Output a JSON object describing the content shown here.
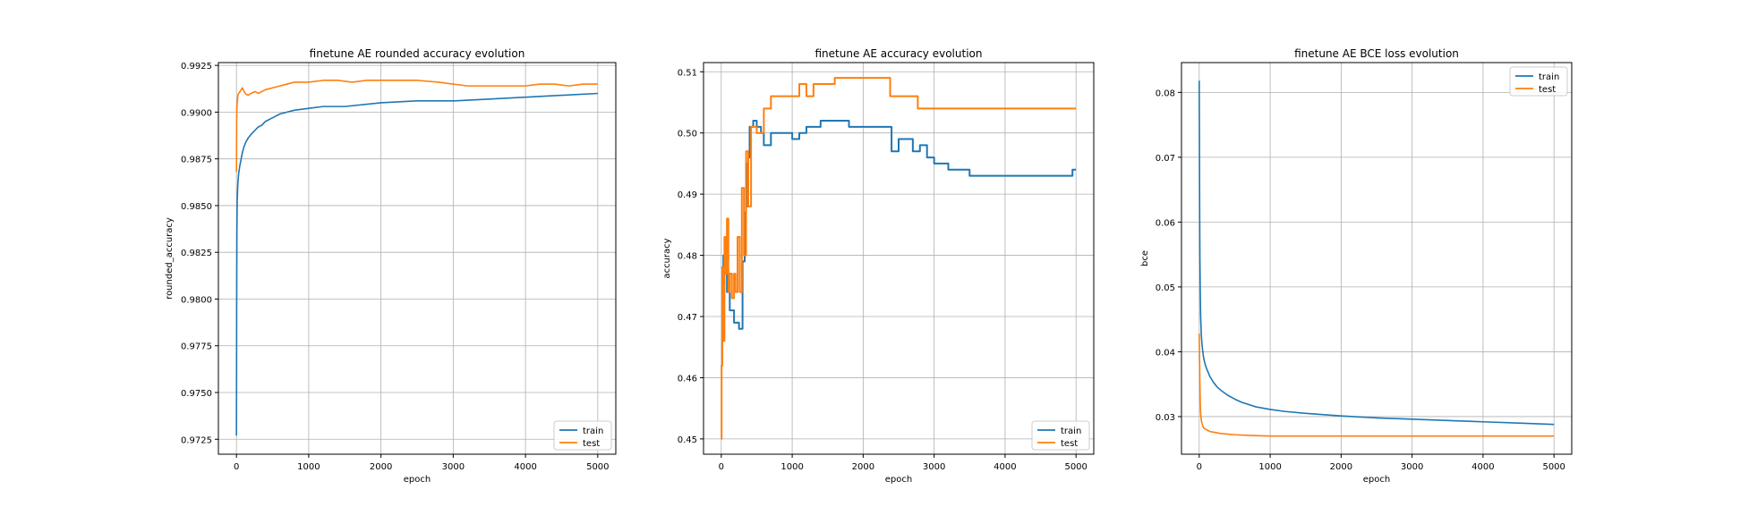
{
  "chart_data": [
    {
      "type": "line",
      "title": "finetune AE rounded accuracy evolution",
      "xlabel": "epoch",
      "ylabel": "rounded_accuracy",
      "xlim": [
        -250,
        5250
      ],
      "ylim": [
        0.9717,
        0.99265
      ],
      "xticks": [
        0,
        1000,
        2000,
        3000,
        4000,
        5000
      ],
      "xtick_labels": [
        "0",
        "1000",
        "2000",
        "3000",
        "4000",
        "5000"
      ],
      "yticks": [
        0.9725,
        0.975,
        0.9775,
        0.98,
        0.9825,
        0.985,
        0.9875,
        0.99,
        0.9925
      ],
      "ytick_labels": [
        "0.9725",
        "0.9750",
        "0.9775",
        "0.9800",
        "0.9825",
        "0.9850",
        "0.9875",
        "0.9900",
        "0.9925"
      ],
      "grid": true,
      "legend": "lower right",
      "series": [
        {
          "name": "train",
          "color": "#1f77b4",
          "step": false,
          "x": [
            0,
            3,
            6,
            10,
            15,
            20,
            30,
            45,
            60,
            80,
            100,
            130,
            160,
            200,
            250,
            300,
            350,
            400,
            500,
            600,
            700,
            800,
            1000,
            1200,
            1500,
            2000,
            2500,
            3000,
            3500,
            4000,
            4500,
            5000
          ],
          "y": [
            0.9727,
            0.9795,
            0.9835,
            0.9852,
            0.9858,
            0.9862,
            0.9867,
            0.9871,
            0.9874,
            0.9878,
            0.9881,
            0.9884,
            0.9886,
            0.9888,
            0.989,
            0.9892,
            0.9893,
            0.9895,
            0.9897,
            0.9899,
            0.99,
            0.9901,
            0.9902,
            0.9903,
            0.9903,
            0.9905,
            0.9906,
            0.9906,
            0.9907,
            0.9908,
            0.9909,
            0.991
          ]
        },
        {
          "name": "test",
          "color": "#ff7f0e",
          "step": false,
          "x": [
            0,
            3,
            6,
            10,
            15,
            20,
            30,
            50,
            80,
            120,
            160,
            200,
            260,
            300,
            350,
            400,
            500,
            600,
            700,
            800,
            1000,
            1200,
            1400,
            1600,
            1800,
            2000,
            2200,
            2500,
            2800,
            3000,
            3200,
            3500,
            4000,
            4200,
            4400,
            4600,
            4800,
            5000
          ],
          "y": [
            0.9868,
            0.9895,
            0.9902,
            0.9905,
            0.9907,
            0.9909,
            0.991,
            0.9911,
            0.9913,
            0.991,
            0.9909,
            0.991,
            0.9911,
            0.991,
            0.9911,
            0.9912,
            0.9913,
            0.9914,
            0.9915,
            0.9916,
            0.9916,
            0.9917,
            0.9917,
            0.9916,
            0.9917,
            0.9917,
            0.9917,
            0.9917,
            0.9916,
            0.9915,
            0.9914,
            0.9914,
            0.9914,
            0.9915,
            0.9915,
            0.9914,
            0.9915,
            0.9915
          ]
        }
      ]
    },
    {
      "type": "line",
      "title": "finetune AE accuracy evolution",
      "xlabel": "epoch",
      "ylabel": "accuracy",
      "xlim": [
        -250,
        5250
      ],
      "ylim": [
        0.4475,
        0.5115
      ],
      "xticks": [
        0,
        1000,
        2000,
        3000,
        4000,
        5000
      ],
      "xtick_labels": [
        "0",
        "1000",
        "2000",
        "3000",
        "4000",
        "5000"
      ],
      "yticks": [
        0.45,
        0.46,
        0.47,
        0.48,
        0.49,
        0.5,
        0.51
      ],
      "ytick_labels": [
        "0.45",
        "0.46",
        "0.47",
        "0.48",
        "0.49",
        "0.50",
        "0.51"
      ],
      "grid": true,
      "legend": "lower right",
      "series": [
        {
          "name": "train",
          "color": "#1f77b4",
          "step": true,
          "x": [
            0,
            15,
            30,
            60,
            80,
            120,
            180,
            250,
            300,
            330,
            350,
            360,
            380,
            400,
            450,
            500,
            560,
            600,
            700,
            800,
            900,
            1000,
            1100,
            1200,
            1300,
            1400,
            1500,
            1600,
            1800,
            2000,
            2300,
            2400,
            2500,
            2700,
            2800,
            2900,
            3000,
            3200,
            3500,
            3700,
            4000,
            4300,
            4500,
            4800,
            4950,
            5000
          ],
          "y": [
            0.478,
            0.476,
            0.48,
            0.478,
            0.474,
            0.471,
            0.469,
            0.468,
            0.479,
            0.487,
            0.495,
            0.488,
            0.496,
            0.501,
            0.502,
            0.501,
            0.5,
            0.498,
            0.5,
            0.5,
            0.5,
            0.499,
            0.5,
            0.501,
            0.501,
            0.502,
            0.502,
            0.502,
            0.501,
            0.501,
            0.501,
            0.497,
            0.499,
            0.497,
            0.498,
            0.496,
            0.495,
            0.494,
            0.493,
            0.493,
            0.493,
            0.493,
            0.493,
            0.493,
            0.494,
            0.494
          ]
        },
        {
          "name": "test",
          "color": "#ff7f0e",
          "step": true,
          "x": [
            0,
            5,
            15,
            30,
            45,
            60,
            80,
            100,
            120,
            150,
            180,
            200,
            230,
            260,
            290,
            320,
            350,
            380,
            420,
            500,
            600,
            700,
            800,
            1000,
            1100,
            1200,
            1300,
            1400,
            1500,
            1600,
            1800,
            2000,
            2200,
            2360,
            2380,
            2600,
            2750,
            2770,
            3000,
            4000,
            5000
          ],
          "y": [
            0.45,
            0.462,
            0.478,
            0.466,
            0.483,
            0.477,
            0.486,
            0.474,
            0.477,
            0.473,
            0.477,
            0.474,
            0.483,
            0.474,
            0.491,
            0.48,
            0.497,
            0.488,
            0.501,
            0.5,
            0.504,
            0.506,
            0.506,
            0.506,
            0.508,
            0.506,
            0.508,
            0.508,
            0.508,
            0.509,
            0.509,
            0.509,
            0.509,
            0.509,
            0.506,
            0.506,
            0.506,
            0.504,
            0.504,
            0.504,
            0.504
          ]
        }
      ]
    },
    {
      "type": "line",
      "title": "finetune AE BCE loss evolution",
      "xlabel": "epoch",
      "ylabel": "bce",
      "xlim": [
        -250,
        5250
      ],
      "ylim": [
        0.0242,
        0.0846
      ],
      "xticks": [
        0,
        1000,
        2000,
        3000,
        4000,
        5000
      ],
      "xtick_labels": [
        "0",
        "1000",
        "2000",
        "3000",
        "4000",
        "5000"
      ],
      "yticks": [
        0.03,
        0.04,
        0.05,
        0.06,
        0.07,
        0.08
      ],
      "ytick_labels": [
        "0.03",
        "0.04",
        "0.05",
        "0.06",
        "0.07",
        "0.08"
      ],
      "grid": true,
      "legend": "upper right",
      "series": [
        {
          "name": "train",
          "color": "#1f77b4",
          "step": false,
          "x": [
            0,
            3,
            6,
            10,
            15,
            20,
            30,
            40,
            60,
            80,
            100,
            150,
            200,
            250,
            300,
            400,
            500,
            600,
            800,
            1000,
            1200,
            1500,
            2000,
            2500,
            3000,
            3500,
            4000,
            4500,
            5000
          ],
          "y": [
            0.0818,
            0.072,
            0.062,
            0.054,
            0.049,
            0.0455,
            0.0425,
            0.041,
            0.0392,
            0.0382,
            0.0375,
            0.0362,
            0.0353,
            0.0346,
            0.0341,
            0.0333,
            0.0327,
            0.0322,
            0.0315,
            0.0311,
            0.0308,
            0.0305,
            0.0301,
            0.0298,
            0.0296,
            0.0294,
            0.0292,
            0.029,
            0.0288
          ]
        },
        {
          "name": "test",
          "color": "#ff7f0e",
          "step": false,
          "x": [
            0,
            3,
            6,
            10,
            15,
            20,
            30,
            45,
            60,
            80,
            100,
            150,
            200,
            300,
            400,
            500,
            700,
            1000,
            1500,
            2000,
            3000,
            4000,
            5000
          ],
          "y": [
            0.0428,
            0.0405,
            0.038,
            0.035,
            0.032,
            0.0305,
            0.0294,
            0.0287,
            0.0283,
            0.0281,
            0.028,
            0.0277,
            0.0276,
            0.0274,
            0.0273,
            0.0272,
            0.0271,
            0.027,
            0.027,
            0.027,
            0.027,
            0.027,
            0.027
          ]
        }
      ]
    }
  ]
}
